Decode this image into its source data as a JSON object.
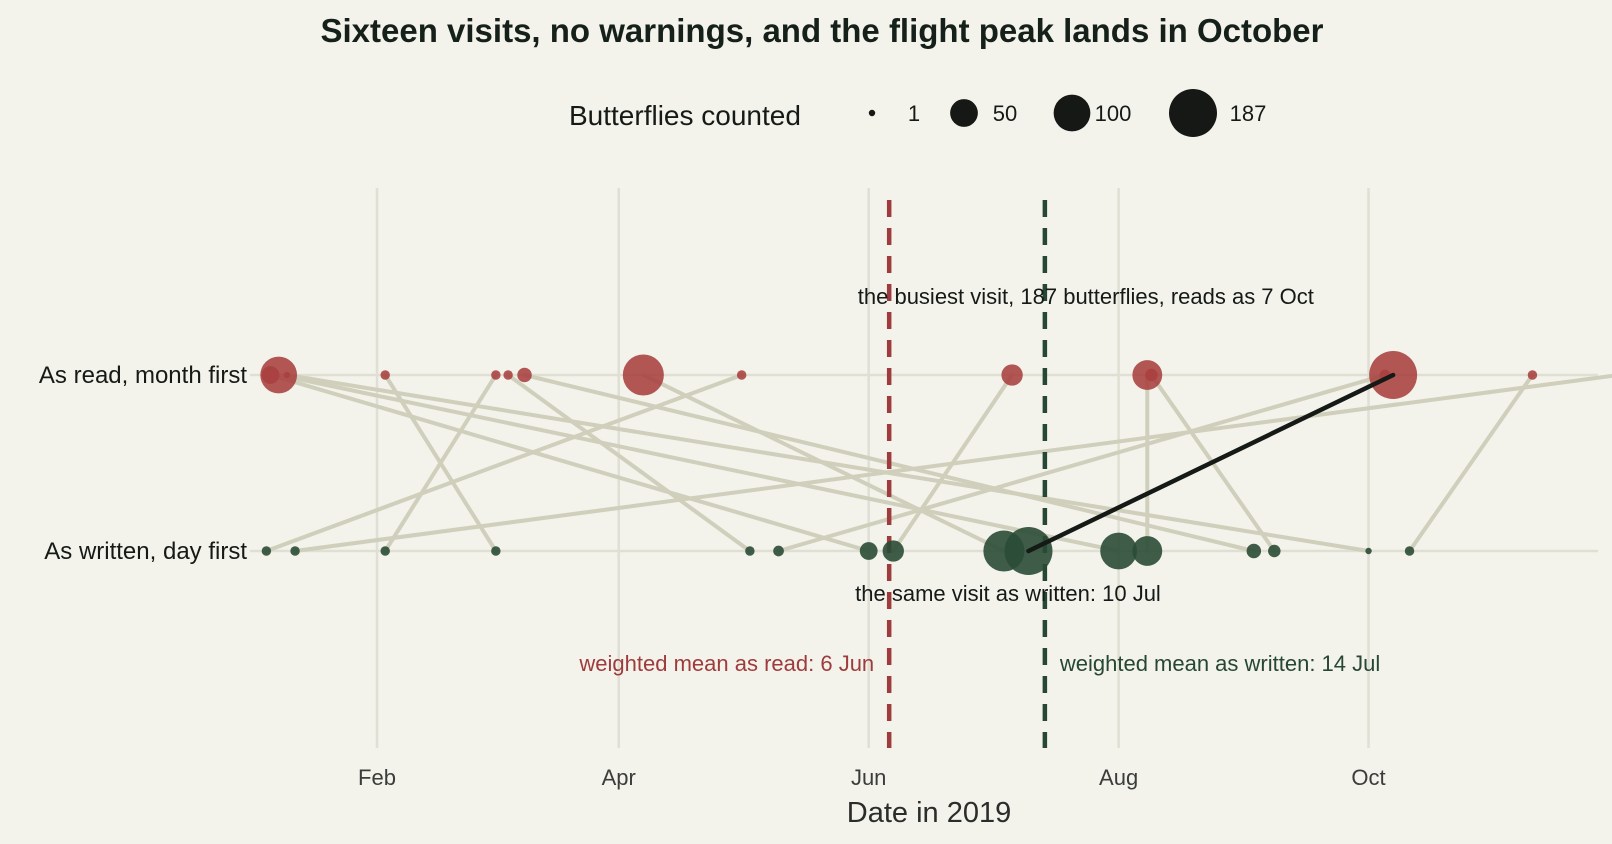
{
  "chart_data": {
    "type": "scatter",
    "title": "Sixteen visits, no warnings, and the flight peak lands in October",
    "xlabel": "Date in 2019",
    "ylabel": "",
    "xlim": [
      "2019-01-01",
      "2019-11-26"
    ],
    "x_ticks": [
      {
        "date": "2019-02-01",
        "label": "Feb"
      },
      {
        "date": "2019-04-01",
        "label": "Apr"
      },
      {
        "date": "2019-06-01",
        "label": "Jun"
      },
      {
        "date": "2019-08-01",
        "label": "Aug"
      },
      {
        "date": "2019-10-01",
        "label": "Oct"
      }
    ],
    "rows": [
      {
        "key": "read",
        "label": "As read, month first"
      },
      {
        "key": "written",
        "label": "As written, day first"
      }
    ],
    "legend": {
      "title": "Butterflies counted",
      "placement": "top",
      "entries": [
        {
          "count": 1,
          "label": "1"
        },
        {
          "count": 50,
          "label": "50"
        },
        {
          "count": 100,
          "label": "100"
        },
        {
          "count": 187,
          "label": "187"
        }
      ]
    },
    "visits": [
      {
        "written": "2019-02-03",
        "read": "2019-03-02",
        "count": 2
      },
      {
        "written": "2019-03-02",
        "read": "2019-02-03",
        "count": 2
      },
      {
        "written": "2019-01-05",
        "read": "2019-05-01",
        "count": 2
      },
      {
        "written": "2019-01-12",
        "read": "2019-12-01",
        "count": 2
      },
      {
        "written": "2019-05-03",
        "read": "2019-03-05",
        "count": 2
      },
      {
        "written": "2019-05-10",
        "read": "2019-10-05",
        "count": 3
      },
      {
        "written": "2019-06-01",
        "read": "2019-01-06",
        "count": 15
      },
      {
        "written": "2019-06-07",
        "read": "2019-07-06",
        "count": 25
      },
      {
        "written": "2019-07-04",
        "read": "2019-04-07",
        "count": 130
      },
      {
        "written": "2019-07-10",
        "read": "2019-10-07",
        "count": 187
      },
      {
        "written": "2019-08-01",
        "read": "2019-01-08",
        "count": 100
      },
      {
        "written": "2019-08-08",
        "read": "2019-08-08",
        "count": 60
      },
      {
        "written": "2019-09-03",
        "read": "2019-03-09",
        "count": 8
      },
      {
        "written": "2019-09-08",
        "read": "2019-08-09",
        "count": 5
      },
      {
        "written": "2019-10-01",
        "read": "2019-01-10",
        "count": 1
      },
      {
        "written": "2019-10-11",
        "read": "2019-11-10",
        "count": 2
      }
    ],
    "reference_lines": [
      {
        "key": "read",
        "date": "2019-06-06",
        "label": "weighted mean as read: 6 Jun",
        "color": "#9e3b3c"
      },
      {
        "key": "written",
        "date": "2019-07-14",
        "label": "weighted mean as written: 14 Jul",
        "color": "#264732"
      }
    ],
    "annotations": [
      {
        "key": "read",
        "text": "the busiest visit, 187 butterflies, reads as 7 Oct"
      },
      {
        "key": "written",
        "text": "the same visit as written: 10 Jul"
      }
    ],
    "highlight_visit": 9,
    "colors": {
      "read": "#a8403f",
      "written": "#2a4b35",
      "connector": "#cfcfbc",
      "highlight": "#151a16",
      "grid": "#dfdfd4",
      "background": "#f3f2eb",
      "legend_point": "#161815"
    }
  }
}
